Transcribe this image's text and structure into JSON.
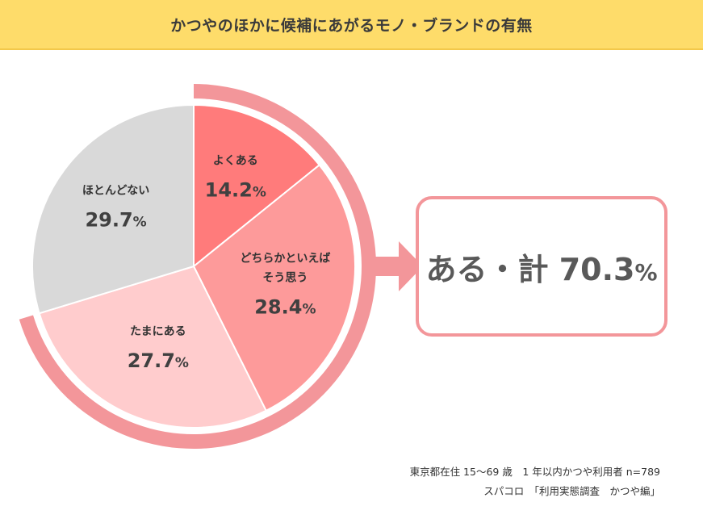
{
  "title": "かつやのほかに候補にあがるモノ・ブランドの有無",
  "chart_data": {
    "type": "pie",
    "unit": "%",
    "slices": [
      {
        "label_lines": [
          "よくある"
        ],
        "value": 14.2,
        "value_text": "14.2",
        "color": "#ff7b7b"
      },
      {
        "label_lines": [
          "どちらかといえば",
          "そう思う"
        ],
        "value": 28.4,
        "value_text": "28.4",
        "color": "#fd9a9a"
      },
      {
        "label_lines": [
          "たまにある"
        ],
        "value": 27.7,
        "value_text": "27.7",
        "color": "#ffcccd"
      },
      {
        "label_lines": [
          "ほとんどない"
        ],
        "value": 29.7,
        "value_text": "29.7",
        "color": "#d9d9d9"
      }
    ],
    "group_total": {
      "label": "ある・計",
      "value": 70.3,
      "value_text": "70.3",
      "unit": "%",
      "color": "#f3969a"
    }
  },
  "source": {
    "line1": "東京都在住 15〜69 歳　1 年以内かつや利用者  n=789",
    "line2": "スパコロ　「利用実態調査　かつや編」"
  }
}
